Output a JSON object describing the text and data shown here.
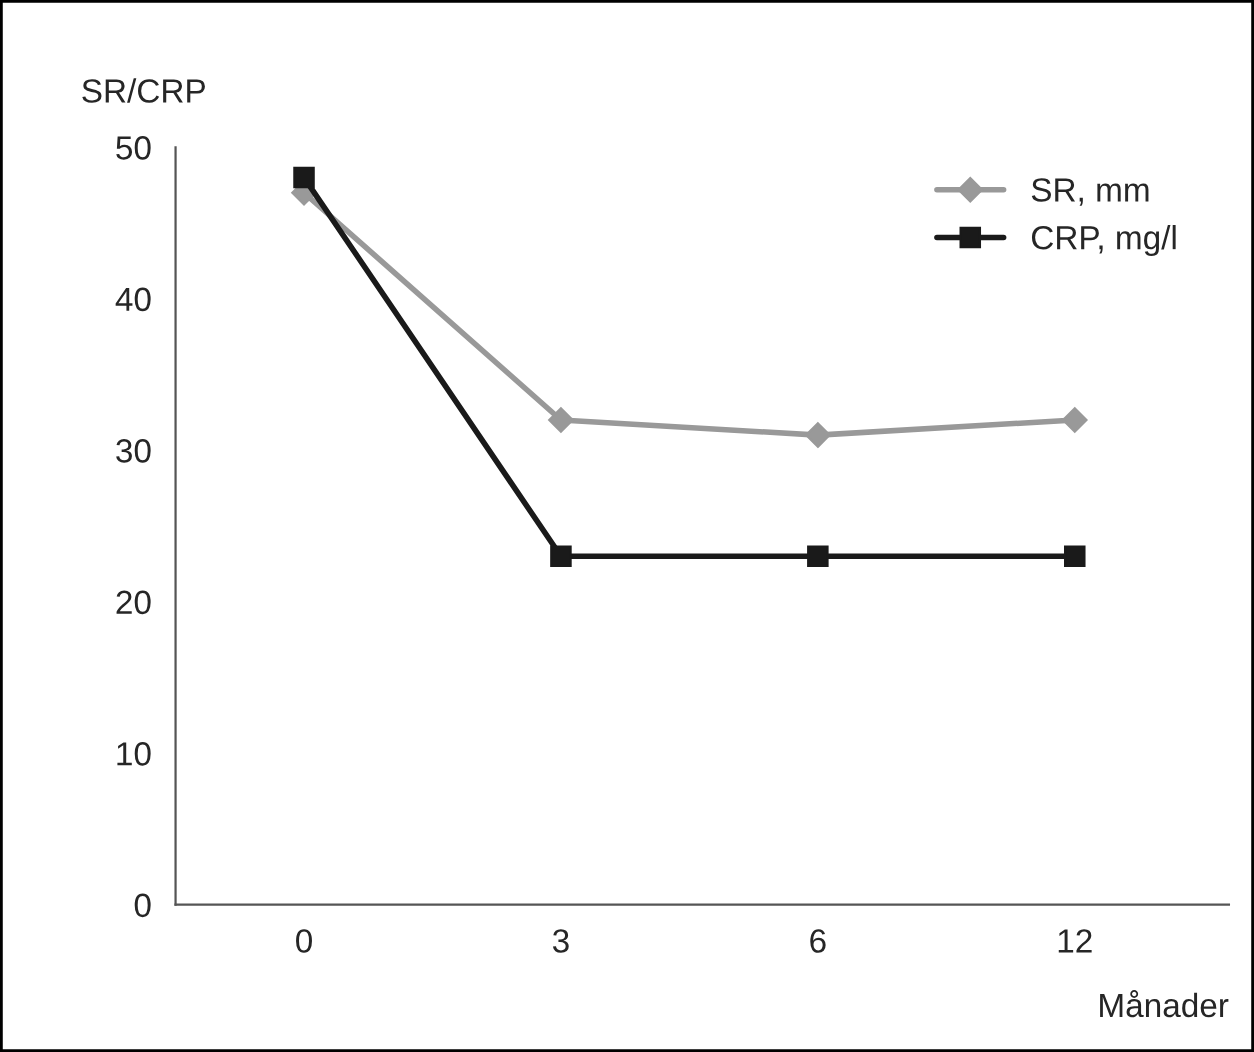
{
  "chart_data": {
    "type": "line",
    "ylabel": "SR/CRP",
    "xlabel": "Månader",
    "categories": [
      "0",
      "3",
      "6",
      "12"
    ],
    "series": [
      {
        "name": "SR, mm",
        "color": "#999999",
        "marker": "diamond",
        "values": [
          47,
          32,
          31,
          32
        ]
      },
      {
        "name": "CRP, mg/l",
        "color": "#1a1a1a",
        "marker": "square",
        "values": [
          48,
          23,
          23,
          23
        ]
      }
    ],
    "ylim": [
      0,
      50
    ],
    "yticks": [
      0,
      10,
      20,
      30,
      40,
      50
    ],
    "grid": false,
    "legend": "top right"
  }
}
